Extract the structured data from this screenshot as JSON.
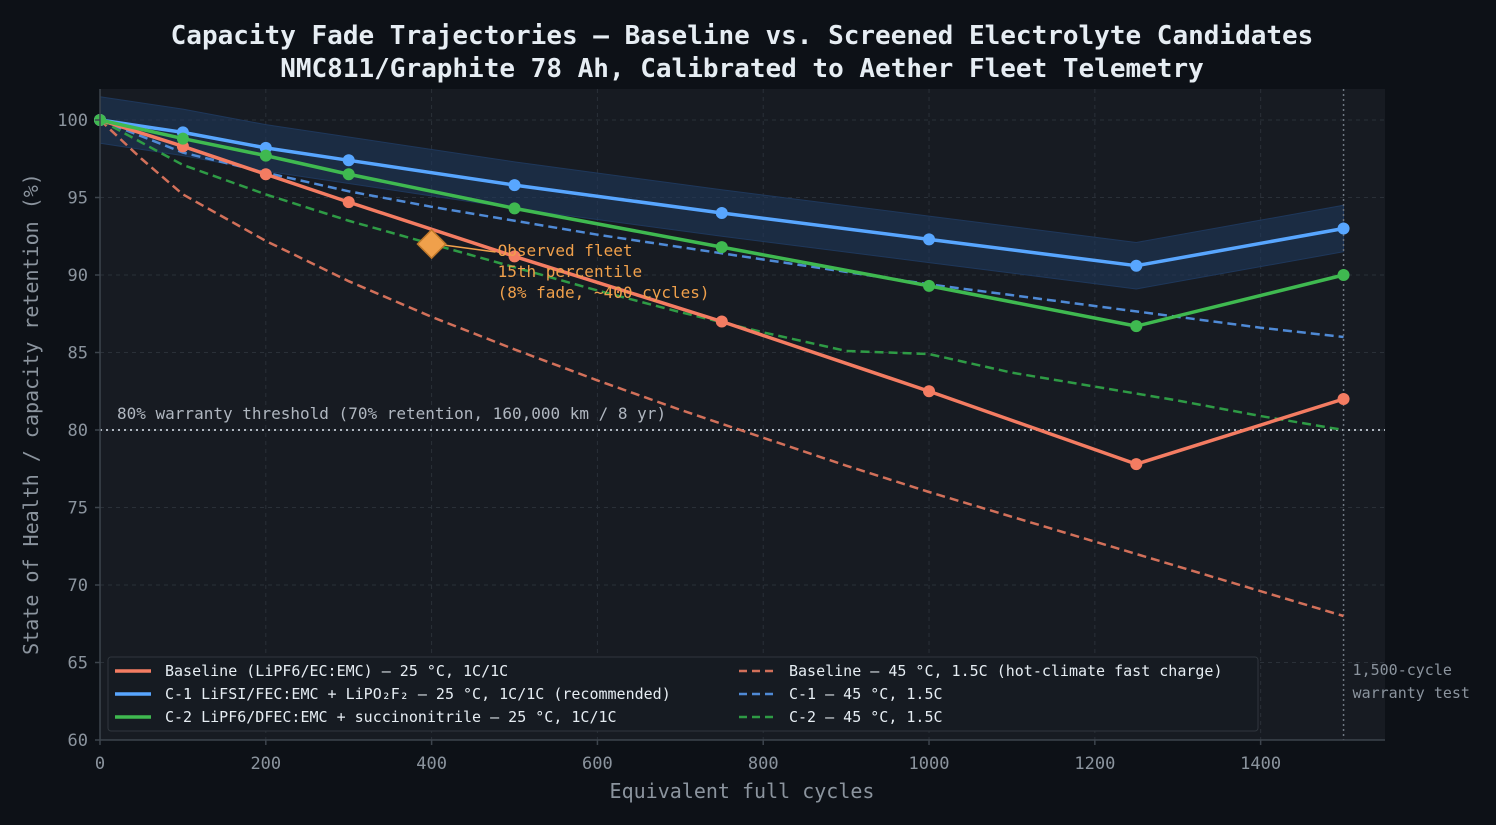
{
  "chart_data": {
    "type": "line",
    "title": "Capacity Fade Trajectories — Baseline vs. Screened Electrolyte Candidates",
    "subtitle": "NMC811/Graphite 78 Ah, Calibrated to Aether Fleet Telemetry",
    "xlabel": "Equivalent full cycles",
    "ylabel": "State of Health / capacity retention (%)",
    "xlim": [
      0,
      1550
    ],
    "ylim": [
      60,
      102
    ],
    "xticks": [
      0,
      200,
      400,
      600,
      800,
      1000,
      1200,
      1400
    ],
    "yticks": [
      60,
      65,
      70,
      75,
      80,
      85,
      90,
      95,
      100
    ],
    "grid": true,
    "legend_position": "lower-left",
    "background": "#171b22",
    "page_background": "#0d1117",
    "series": [
      {
        "name": "Baseline (LiPF6/EC:EMC) — 25 °C, 1C/1C",
        "color": "#f47c62",
        "style": "solid",
        "markers": true,
        "x": [
          0,
          100,
          200,
          300,
          500,
          750,
          1000,
          1250,
          1500
        ],
        "y": [
          100,
          98.3,
          96.5,
          94.7,
          91.2,
          87.0,
          82.5,
          77.8,
          82.0
        ]
      },
      {
        "name": "C-1 LiFSI/FEC:EMC + LiPO₂F₂ — 25 °C, 1C/1C (recommended)",
        "color": "#58a6ff",
        "style": "solid",
        "markers": true,
        "x": [
          0,
          100,
          200,
          300,
          500,
          750,
          1000,
          1250,
          1500
        ],
        "y": [
          100,
          99.2,
          98.2,
          97.4,
          95.8,
          94.0,
          92.3,
          90.6,
          93.0
        ]
      },
      {
        "name": "C-2 LiPF6/DFEC:EMC + succinonitrile — 25 °C, 1C/1C",
        "color": "#3fb950",
        "style": "solid",
        "markers": true,
        "x": [
          0,
          100,
          200,
          300,
          500,
          750,
          1000,
          1250,
          1500
        ],
        "y": [
          100,
          98.8,
          97.7,
          96.5,
          94.3,
          91.8,
          89.3,
          86.7,
          90.0
        ]
      },
      {
        "name": "Baseline — 45 °C, 1.5C (hot-climate fast charge)",
        "color": "#d2705a",
        "style": "dashed",
        "markers": false,
        "x": [
          0,
          50,
          100,
          200,
          300,
          400,
          500,
          600,
          700,
          800,
          900,
          1000,
          1100,
          1200,
          1300,
          1400,
          1500
        ],
        "y": [
          100,
          97.5,
          95.2,
          92.2,
          89.6,
          87.3,
          85.2,
          83.2,
          81.3,
          79.5,
          77.7,
          76.0,
          74.4,
          72.8,
          71.2,
          69.6,
          68.0
        ]
      },
      {
        "name": "C-1 — 45 °C, 1.5C",
        "color": "#4f8ad6",
        "style": "dashed",
        "markers": false,
        "x": [
          0,
          100,
          200,
          300,
          400,
          500,
          600,
          700,
          800,
          900,
          1000,
          1100,
          1200,
          1300,
          1400,
          1500
        ],
        "y": [
          100,
          97.9,
          96.6,
          95.4,
          94.4,
          93.5,
          92.6,
          91.8,
          91.0,
          90.2,
          89.4,
          88.7,
          88.0,
          87.3,
          86.6,
          86.0
        ]
      },
      {
        "name": "C-2 — 45 °C, 1.5C",
        "color": "#2e9b45",
        "style": "dashed",
        "markers": false,
        "x": [
          0,
          100,
          200,
          300,
          400,
          500,
          600,
          700,
          800,
          900,
          1000,
          1100,
          1200,
          1300,
          1400,
          1500
        ],
        "y": [
          100,
          97.1,
          95.2,
          93.5,
          92.0,
          90.5,
          89.0,
          87.6,
          86.3,
          85.1,
          84.9,
          83.7,
          82.8,
          81.9,
          80.9,
          80.0
        ]
      }
    ],
    "band": {
      "series": "C-1 LiFSI/FEC:EMC + LiPO₂F₂ — 25 °C, 1C/1C (recommended)",
      "color": "#1f3a5f",
      "x": [
        0,
        100,
        200,
        300,
        500,
        750,
        1000,
        1250,
        1500
      ],
      "upper": [
        101.5,
        100.7,
        99.7,
        98.9,
        97.3,
        95.5,
        93.8,
        92.1,
        94.5
      ],
      "lower": [
        98.5,
        97.7,
        96.7,
        95.9,
        94.3,
        92.5,
        90.8,
        89.1,
        91.5
      ]
    },
    "threshold": {
      "y": 80,
      "label": "80% warranty threshold (70% retention, 160,000 km / 8 yr)",
      "color": "#b0b7c0"
    },
    "vline": {
      "x": 1500,
      "label_line1": "1,500-cycle",
      "label_line2": "warranty test",
      "color": "#6e7681"
    },
    "fleet_point": {
      "x": 400,
      "y": 92,
      "color": "#f0a04b",
      "label_line1": "Observed fleet",
      "label_line2": "15th percentile",
      "label_line3": "(8% fade, ~400 cycles)"
    }
  }
}
